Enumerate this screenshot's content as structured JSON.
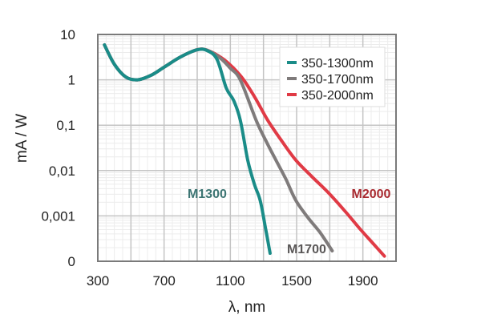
{
  "chart_data": {
    "type": "line",
    "title": "",
    "xlabel": "λ, nm",
    "ylabel": "mA / W",
    "xlim": [
      300,
      2100
    ],
    "ylim": [
      0.0001,
      10
    ],
    "yscale": "log",
    "grid": true,
    "x_ticks": [
      300,
      700,
      1100,
      1500,
      1900
    ],
    "x_tick_labels": [
      "300",
      "700",
      "1100",
      "1500",
      "1900"
    ],
    "y_ticks": [
      0.0001,
      0.001,
      0.01,
      0.1,
      1,
      10
    ],
    "y_tick_labels": [
      "0",
      "0,001",
      "0,01",
      "0,1",
      "1",
      "10"
    ],
    "legend_position": "top-right",
    "series": [
      {
        "name": "350-1300nm",
        "annotation": "M1300",
        "color": "#1a8c88",
        "annotation_color": "#3d7573",
        "points": [
          [
            340,
            5.9
          ],
          [
            400,
            2.2
          ],
          [
            470,
            1.15
          ],
          [
            540,
            1.0
          ],
          [
            620,
            1.25
          ],
          [
            700,
            1.9
          ],
          [
            800,
            3.2
          ],
          [
            900,
            4.6
          ],
          [
            960,
            4.4
          ],
          [
            1020,
            2.8
          ],
          [
            1075,
            0.66
          ],
          [
            1120,
            0.35
          ],
          [
            1160,
            0.13
          ],
          [
            1205,
            0.017
          ],
          [
            1245,
            0.005
          ],
          [
            1280,
            0.0022
          ],
          [
            1310,
            0.0006
          ],
          [
            1340,
            0.00015
          ]
        ]
      },
      {
        "name": "350-1700nm",
        "annotation": "M1700",
        "color": "#7f7b7b",
        "annotation_color": "#5a5757",
        "points": [
          [
            340,
            5.9
          ],
          [
            400,
            2.2
          ],
          [
            470,
            1.15
          ],
          [
            540,
            1.0
          ],
          [
            620,
            1.25
          ],
          [
            700,
            1.9
          ],
          [
            800,
            3.2
          ],
          [
            900,
            4.6
          ],
          [
            960,
            4.5
          ],
          [
            1040,
            3.0
          ],
          [
            1100,
            1.8
          ],
          [
            1160,
            1.0
          ],
          [
            1255,
            0.13
          ],
          [
            1315,
            0.045
          ],
          [
            1375,
            0.017
          ],
          [
            1435,
            0.0065
          ],
          [
            1495,
            0.0022
          ],
          [
            1570,
            0.0009
          ],
          [
            1640,
            0.00044
          ],
          [
            1715,
            0.00017
          ]
        ]
      },
      {
        "name": "350-2000nm",
        "annotation": "M2000",
        "color": "#e03a45",
        "annotation_color": "#a82a30",
        "points": [
          [
            340,
            5.9
          ],
          [
            400,
            2.2
          ],
          [
            470,
            1.15
          ],
          [
            540,
            1.0
          ],
          [
            620,
            1.25
          ],
          [
            700,
            1.9
          ],
          [
            800,
            3.2
          ],
          [
            900,
            4.6
          ],
          [
            960,
            4.5
          ],
          [
            1050,
            3.0
          ],
          [
            1120,
            1.8
          ],
          [
            1180,
            1.0
          ],
          [
            1250,
            0.4
          ],
          [
            1325,
            0.13
          ],
          [
            1410,
            0.045
          ],
          [
            1495,
            0.017
          ],
          [
            1590,
            0.0075
          ],
          [
            1690,
            0.0033
          ],
          [
            1790,
            0.0013
          ],
          [
            1880,
            0.00053
          ],
          [
            1960,
            0.00025
          ],
          [
            2030,
            0.00013
          ]
        ]
      }
    ]
  }
}
